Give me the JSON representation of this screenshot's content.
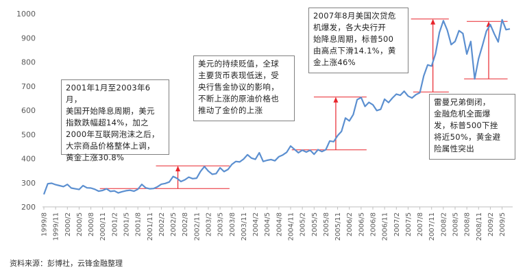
{
  "chart_data": {
    "type": "line",
    "ylim": [
      200,
      1000
    ],
    "yticks": [
      200,
      300,
      400,
      500,
      600,
      700,
      800,
      900,
      1000
    ],
    "grid": false,
    "x_tick_labels": [
      "1999/8",
      "1999/11",
      "2000/2",
      "2000/5",
      "2000/8",
      "2000/11",
      "2001/2",
      "2001/5",
      "2001/8",
      "2001/11",
      "2002/2",
      "2002/5",
      "2002/8",
      "2002/11",
      "2003/2",
      "2003/5",
      "2003/8",
      "2003/11",
      "2004/2",
      "2004/5",
      "2004/8",
      "2004/11",
      "2005/2",
      "2005/5",
      "2005/8",
      "2005/11",
      "2006/2",
      "2006/5",
      "2006/8",
      "2006/11",
      "2007/2",
      "2007/5",
      "2007/8",
      "2007/11",
      "2008/2",
      "2008/5",
      "2008/8",
      "2008/11",
      "2009/2",
      "2009/5"
    ],
    "series": [
      {
        "color": "#5b8fd0",
        "values": [
          {
            "x": "1999/8",
            "y": 252
          },
          {
            "x": "1999/9",
            "y": 296
          },
          {
            "x": "1999/10",
            "y": 298
          },
          {
            "x": "1999/11",
            "y": 292
          },
          {
            "x": "1999/12",
            "y": 288
          },
          {
            "x": "2000/1",
            "y": 284
          },
          {
            "x": "2000/2",
            "y": 293
          },
          {
            "x": "2000/3",
            "y": 278
          },
          {
            "x": "2000/4",
            "y": 275
          },
          {
            "x": "2000/5",
            "y": 272
          },
          {
            "x": "2000/6",
            "y": 288
          },
          {
            "x": "2000/7",
            "y": 279
          },
          {
            "x": "2000/8",
            "y": 278
          },
          {
            "x": "2000/9",
            "y": 273
          },
          {
            "x": "2000/10",
            "y": 265
          },
          {
            "x": "2000/11",
            "y": 268
          },
          {
            "x": "2000/12",
            "y": 275
          },
          {
            "x": "2001/1",
            "y": 264
          },
          {
            "x": "2001/2",
            "y": 266
          },
          {
            "x": "2001/3",
            "y": 258
          },
          {
            "x": "2001/4",
            "y": 263
          },
          {
            "x": "2001/5",
            "y": 267
          },
          {
            "x": "2001/6",
            "y": 269
          },
          {
            "x": "2001/7",
            "y": 265
          },
          {
            "x": "2001/8",
            "y": 273
          },
          {
            "x": "2001/9",
            "y": 293
          },
          {
            "x": "2001/10",
            "y": 279
          },
          {
            "x": "2001/11",
            "y": 275
          },
          {
            "x": "2001/12",
            "y": 276
          },
          {
            "x": "2002/1",
            "y": 283
          },
          {
            "x": "2002/2",
            "y": 294
          },
          {
            "x": "2002/3",
            "y": 297
          },
          {
            "x": "2002/4",
            "y": 303
          },
          {
            "x": "2002/5",
            "y": 326
          },
          {
            "x": "2002/6",
            "y": 318
          },
          {
            "x": "2002/7",
            "y": 305
          },
          {
            "x": "2002/8",
            "y": 312
          },
          {
            "x": "2002/9",
            "y": 323
          },
          {
            "x": "2002/10",
            "y": 317
          },
          {
            "x": "2002/11",
            "y": 319
          },
          {
            "x": "2002/12",
            "y": 347
          },
          {
            "x": "2003/1",
            "y": 367
          },
          {
            "x": "2003/2",
            "y": 348
          },
          {
            "x": "2003/3",
            "y": 335
          },
          {
            "x": "2003/4",
            "y": 338
          },
          {
            "x": "2003/5",
            "y": 362
          },
          {
            "x": "2003/6",
            "y": 346
          },
          {
            "x": "2003/7",
            "y": 355
          },
          {
            "x": "2003/8",
            "y": 376
          },
          {
            "x": "2003/9",
            "y": 388
          },
          {
            "x": "2003/10",
            "y": 386
          },
          {
            "x": "2003/11",
            "y": 398
          },
          {
            "x": "2003/12",
            "y": 416
          },
          {
            "x": "2004/1",
            "y": 402
          },
          {
            "x": "2004/2",
            "y": 397
          },
          {
            "x": "2004/3",
            "y": 424
          },
          {
            "x": "2004/4",
            "y": 388
          },
          {
            "x": "2004/5",
            "y": 393
          },
          {
            "x": "2004/6",
            "y": 396
          },
          {
            "x": "2004/7",
            "y": 391
          },
          {
            "x": "2004/8",
            "y": 408
          },
          {
            "x": "2004/9",
            "y": 415
          },
          {
            "x": "2004/10",
            "y": 426
          },
          {
            "x": "2004/11",
            "y": 452
          },
          {
            "x": "2004/12",
            "y": 438
          },
          {
            "x": "2005/1",
            "y": 424
          },
          {
            "x": "2005/2",
            "y": 435
          },
          {
            "x": "2005/3",
            "y": 427
          },
          {
            "x": "2005/4",
            "y": 435
          },
          {
            "x": "2005/5",
            "y": 418
          },
          {
            "x": "2005/6",
            "y": 437
          },
          {
            "x": "2005/7",
            "y": 429
          },
          {
            "x": "2005/8",
            "y": 437
          },
          {
            "x": "2005/9",
            "y": 473
          },
          {
            "x": "2005/10",
            "y": 470
          },
          {
            "x": "2005/11",
            "y": 495
          },
          {
            "x": "2005/12",
            "y": 513
          },
          {
            "x": "2006/1",
            "y": 568
          },
          {
            "x": "2006/2",
            "y": 556
          },
          {
            "x": "2006/3",
            "y": 582
          },
          {
            "x": "2006/4",
            "y": 644
          },
          {
            "x": "2006/5",
            "y": 653
          },
          {
            "x": "2006/6",
            "y": 616
          },
          {
            "x": "2006/7",
            "y": 633
          },
          {
            "x": "2006/8",
            "y": 623
          },
          {
            "x": "2006/9",
            "y": 599
          },
          {
            "x": "2006/10",
            "y": 604
          },
          {
            "x": "2006/11",
            "y": 646
          },
          {
            "x": "2006/12",
            "y": 632
          },
          {
            "x": "2007/1",
            "y": 651
          },
          {
            "x": "2007/2",
            "y": 667
          },
          {
            "x": "2007/3",
            "y": 662
          },
          {
            "x": "2007/4",
            "y": 679
          },
          {
            "x": "2007/5",
            "y": 659
          },
          {
            "x": "2007/6",
            "y": 651
          },
          {
            "x": "2007/7",
            "y": 665
          },
          {
            "x": "2007/8",
            "y": 673
          },
          {
            "x": "2007/9",
            "y": 743
          },
          {
            "x": "2007/10",
            "y": 788
          },
          {
            "x": "2007/11",
            "y": 783
          },
          {
            "x": "2007/12",
            "y": 834
          },
          {
            "x": "2008/1",
            "y": 922
          },
          {
            "x": "2008/2",
            "y": 971
          },
          {
            "x": "2008/3",
            "y": 932
          },
          {
            "x": "2008/4",
            "y": 872
          },
          {
            "x": "2008/5",
            "y": 885
          },
          {
            "x": "2008/6",
            "y": 930
          },
          {
            "x": "2008/7",
            "y": 918
          },
          {
            "x": "2008/8",
            "y": 833
          },
          {
            "x": "2008/9",
            "y": 885
          },
          {
            "x": "2008/10",
            "y": 730
          },
          {
            "x": "2008/11",
            "y": 814
          },
          {
            "x": "2008/12",
            "y": 869
          },
          {
            "x": "2009/1",
            "y": 928
          },
          {
            "x": "2009/2",
            "y": 955
          },
          {
            "x": "2009/3",
            "y": 917
          },
          {
            "x": "2009/4",
            "y": 883
          },
          {
            "x": "2009/5",
            "y": 975
          },
          {
            "x": "2009/6",
            "y": 934
          },
          {
            "x": "2009/7",
            "y": 937
          }
        ]
      }
    ],
    "annotations": [
      {
        "text": "2001年1月至2003年6月，\n美国开始降息周期，美元\n指数跌幅超14%，加之\n2000年互联网泡沫之后，\n大宗商品价格整体上调，\n黄金上涨30.8%"
      },
      {
        "text": "美元的持续贬值，全球\n主要货币表现低迷，受\n央行售金协议的影响，\n不断上涨的原油价格也\n推动了金价的上涨"
      },
      {
        "text": "2007年8月美国次贷危\n机爆发，各大央行开\n始降息周期，标普500\n由高点下滑14.1%，黄\n金上涨46%"
      },
      {
        "text": "雷曼兄弟倒闭，\n金融危机全面爆\n发，标普500下挫\n将近50%，黄金避\n险属性突出"
      }
    ],
    "arrows": [
      {
        "x_from": "2000/11",
        "x_to": "2003/6",
        "base": 276,
        "top": 370
      },
      {
        "x_from": "2004/12",
        "x_to": "2006/5",
        "base": 436,
        "top": 655
      },
      {
        "x_from": "2007/7",
        "x_to": "2008/2",
        "base": 676,
        "top": 978
      },
      {
        "x_from": "2008/8",
        "x_to": "2009/5",
        "base": 730,
        "top": 968
      }
    ]
  },
  "footer": {
    "source": "资料来源：彭博社，云锋金融整理"
  },
  "colors": {
    "line": "#5b8fd0",
    "annotation": "#e8242b",
    "axis": "#bfbfbf",
    "text": "#595959"
  }
}
